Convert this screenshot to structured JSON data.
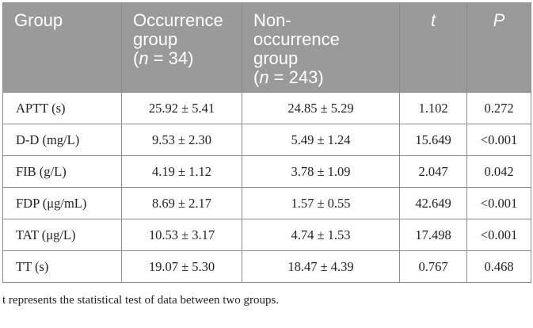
{
  "table": {
    "headers": {
      "group": "Group",
      "occ_line1": "Occurrence",
      "occ_line2": "group",
      "occ_n_pre": "(",
      "occ_n_var": "n",
      "occ_n_post": " = 34)",
      "non_line1": "Non-",
      "non_line2": "occurrence",
      "non_line3": "group",
      "non_n_pre": "(",
      "non_n_var": "n",
      "non_n_post": " = 243)",
      "t": "t",
      "p": "P"
    },
    "rows": [
      {
        "label": "APTT (s)",
        "occ": "25.92 ± 5.41",
        "non": "24.85 ± 5.29",
        "t": "1.102",
        "p": "0.272"
      },
      {
        "label": "D-D (mg/L)",
        "occ": "9.53 ± 2.30",
        "non": "5.49 ± 1.24",
        "t": "15.649",
        "p": "<0.001"
      },
      {
        "label": "FIB (g/L)",
        "occ": "4.19 ± 1.12",
        "non": "3.78 ± 1.09",
        "t": "2.047",
        "p": "0.042"
      },
      {
        "label": "FDP (μg/mL)",
        "occ": "8.69 ± 2.17",
        "non": "1.57 ± 0.55",
        "t": "42.649",
        "p": "<0.001"
      },
      {
        "label": "TAT (μg/L)",
        "occ": "10.53 ± 3.17",
        "non": "4.74 ± 1.53",
        "t": "17.498",
        "p": "<0.001"
      },
      {
        "label": "TT (s)",
        "occ": "19.07 ± 5.30",
        "non": "18.47 ± 4.39",
        "t": "0.767",
        "p": "0.468"
      }
    ]
  },
  "footnote": "t represents the statistical test of data between two groups."
}
